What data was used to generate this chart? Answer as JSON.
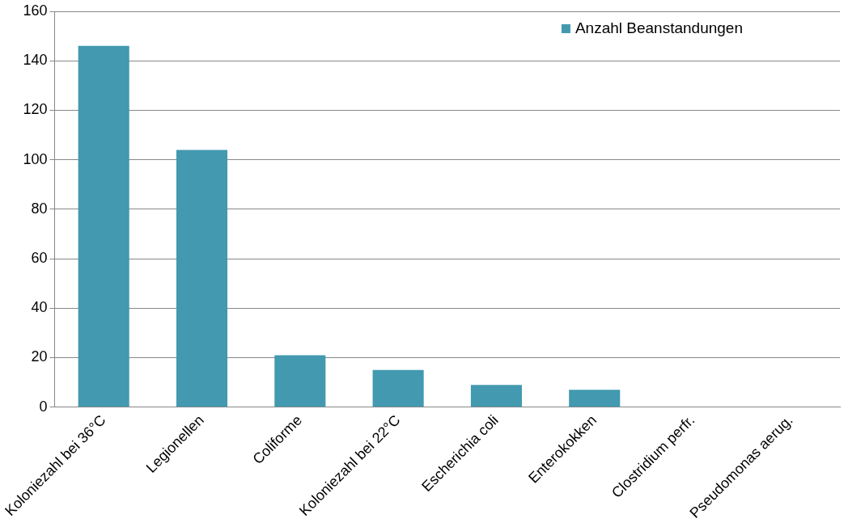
{
  "chart_data": {
    "type": "bar",
    "categories": [
      "Koloniezahl bei 36°C",
      "Legionellen",
      "Coliforme",
      "Koloniezahl bei 22°C",
      "Escherichia coli",
      "Enterokokken",
      "Clostridium perfr.",
      "Pseudomonas aerug."
    ],
    "series": [
      {
        "name": "Anzahl Beanstandungen",
        "color": "#4299b0",
        "values": [
          146,
          104,
          21,
          15,
          9,
          7,
          0,
          0
        ]
      }
    ],
    "ylim": [
      0,
      160
    ],
    "yticks": [
      0,
      20,
      40,
      60,
      80,
      100,
      120,
      140,
      160
    ],
    "grid": "y",
    "legend": "top right"
  }
}
